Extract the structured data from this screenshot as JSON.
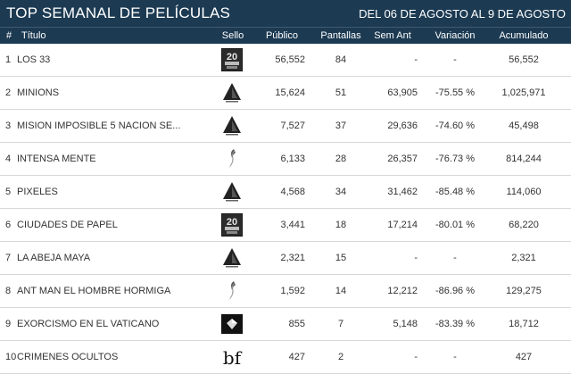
{
  "header": {
    "title": "TOP SEMANAL DE PELÍCULAS",
    "range": "DEL 06 DE AGOSTO AL 9 DE AGOSTO"
  },
  "columns": {
    "num": "#",
    "title": "Título",
    "sello": "Sello",
    "publico": "Público",
    "pantallas": "Pantallas",
    "sem_ant": "Sem Ant",
    "variacion": "Variación",
    "acumulado": "Acumulado"
  },
  "colors": {
    "header_bg": "#1c3a52",
    "header_text": "#ffffff",
    "row_text": "#333333",
    "row_border": "#d8d8d8"
  },
  "rows": [
    {
      "num": "1",
      "title": "LOS 33",
      "logo": "fox-20th-century-logo",
      "publico": "56,552",
      "pantallas": "84",
      "sem_ant": "-",
      "variacion": "-",
      "acumulado": "56,552"
    },
    {
      "num": "2",
      "title": "MINIONS",
      "logo": "pyramid-logo",
      "publico": "15,624",
      "pantallas": "51",
      "sem_ant": "63,905",
      "variacion": "-75.55 %",
      "acumulado": "1,025,971"
    },
    {
      "num": "3",
      "title": "MISION IMPOSIBLE 5 NACION SE...",
      "logo": "pyramid-logo",
      "publico": "7,527",
      "pantallas": "37",
      "sem_ant": "29,636",
      "variacion": "-74.60 %",
      "acumulado": "45,498"
    },
    {
      "num": "4",
      "title": "INTENSA MENTE",
      "logo": "swoosh-logo",
      "publico": "6,133",
      "pantallas": "28",
      "sem_ant": "26,357",
      "variacion": "-76.73 %",
      "acumulado": "814,244"
    },
    {
      "num": "5",
      "title": "PIXELES",
      "logo": "pyramid-logo",
      "publico": "4,568",
      "pantallas": "34",
      "sem_ant": "31,462",
      "variacion": "-85.48 %",
      "acumulado": "114,060"
    },
    {
      "num": "6",
      "title": "CIUDADES DE PAPEL",
      "logo": "fox-20th-century-logo",
      "publico": "3,441",
      "pantallas": "18",
      "sem_ant": "17,214",
      "variacion": "-80.01 %",
      "acumulado": "68,220"
    },
    {
      "num": "7",
      "title": "LA ABEJA MAYA",
      "logo": "pyramid-logo",
      "publico": "2,321",
      "pantallas": "15",
      "sem_ant": "-",
      "variacion": "-",
      "acumulado": "2,321"
    },
    {
      "num": "8",
      "title": "ANT MAN EL HOMBRE HORMIGA",
      "logo": "swoosh-logo",
      "publico": "1,592",
      "pantallas": "14",
      "sem_ant": "12,212",
      "variacion": "-86.96 %",
      "acumulado": "129,275"
    },
    {
      "num": "9",
      "title": "EXORCISMO EN EL VATICANO",
      "logo": "diamond-logo",
      "publico": "855",
      "pantallas": "7",
      "sem_ant": "5,148",
      "variacion": "-83.39 %",
      "acumulado": "18,712"
    },
    {
      "num": "10",
      "title": "CRIMENES OCULTOS",
      "logo": "bf-logo",
      "publico": "427",
      "pantallas": "2",
      "sem_ant": "-",
      "variacion": "-",
      "acumulado": "427"
    }
  ]
}
